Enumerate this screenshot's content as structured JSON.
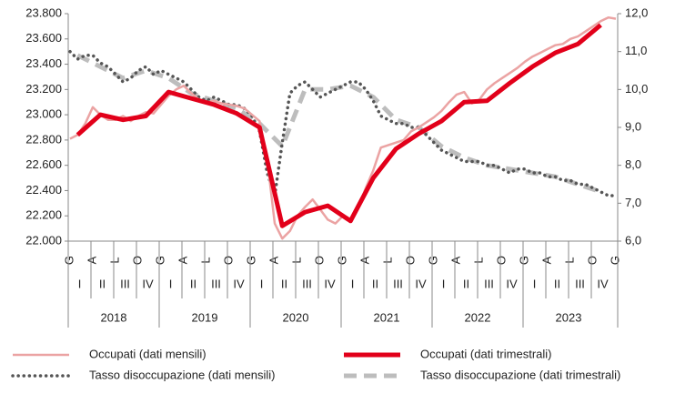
{
  "chart_data": {
    "type": "line",
    "categories": [
      "G",
      null,
      null,
      "A",
      null,
      null,
      "L",
      null,
      null,
      "O",
      null,
      null,
      "G",
      null,
      null,
      "A",
      null,
      null,
      "L",
      null,
      null,
      "O",
      null,
      null,
      "G",
      null,
      null,
      "A",
      null,
      null,
      "L",
      null,
      null,
      "O",
      null,
      null,
      "G",
      null,
      null,
      "A",
      null,
      null,
      "L",
      null,
      null,
      "O",
      null,
      null,
      "G",
      null,
      null,
      "A",
      null,
      null,
      "L",
      null,
      null,
      "O",
      null,
      null,
      "G",
      null,
      null,
      "A",
      null,
      null,
      "L",
      null,
      null,
      "O",
      null,
      null,
      "G"
    ],
    "quarters": [
      "I",
      "II",
      "III",
      "IV",
      "I",
      "II",
      "III",
      "IV",
      "I",
      "II",
      "III",
      "IV",
      "I",
      "II",
      "III",
      "IV",
      "I",
      "II",
      "III",
      "IV",
      "I",
      "II",
      "III",
      "IV"
    ],
    "years": [
      "2018",
      "2019",
      "2020",
      "2021",
      "2022",
      "2023"
    ],
    "ylim": [
      22000,
      23800
    ],
    "yticks": [
      {
        "value": 22000,
        "label": "22.000"
      },
      {
        "value": 22200,
        "label": "22.200"
      },
      {
        "value": 22400,
        "label": "22.400"
      },
      {
        "value": 22600,
        "label": "22.600"
      },
      {
        "value": 22800,
        "label": "22.800"
      },
      {
        "value": 23000,
        "label": "23.000"
      },
      {
        "value": 23200,
        "label": "23.200"
      },
      {
        "value": 23400,
        "label": "23.400"
      },
      {
        "value": 23600,
        "label": "23.600"
      },
      {
        "value": 23800,
        "label": "23.800"
      }
    ],
    "y2lim": [
      6,
      12
    ],
    "y2ticks": [
      {
        "value": 6,
        "label": "6,0"
      },
      {
        "value": 7,
        "label": "7,0"
      },
      {
        "value": 8,
        "label": "8,0"
      },
      {
        "value": 9,
        "label": "9,0"
      },
      {
        "value": 10,
        "label": "10,0"
      },
      {
        "value": 11,
        "label": "11,0"
      },
      {
        "value": 12,
        "label": "12,0"
      }
    ],
    "series": [
      {
        "name": "Occupati (dati mensili)",
        "color": "#eba3a3",
        "style": "solid",
        "width": 2.5,
        "values": [
          22810,
          22840,
          22930,
          23060,
          23000,
          22960,
          22960,
          22990,
          22950,
          22990,
          23020,
          23010,
          23080,
          23150,
          23200,
          23230,
          23170,
          23120,
          23100,
          23110,
          23090,
          23080,
          23070,
          23050,
          23000,
          22950,
          22650,
          22140,
          22020,
          22080,
          22200,
          22270,
          22330,
          22250,
          22170,
          22140,
          22200,
          22170,
          22260,
          22420,
          22560,
          22740,
          22760,
          22780,
          22800,
          22870,
          22900,
          22940,
          22980,
          23030,
          23100,
          23160,
          23180,
          23090,
          23120,
          23200,
          23250,
          23290,
          23330,
          23370,
          23420,
          23460,
          23490,
          23520,
          23550,
          23560,
          23600,
          23620,
          23660,
          23700,
          23740,
          23770,
          23760
        ]
      },
      {
        "name": "Occupati (dati trimestrali)",
        "color": "#e2001a",
        "style": "solid",
        "width": 5,
        "x": [
          1,
          4,
          7,
          10,
          13,
          16,
          19,
          22,
          25,
          28,
          31,
          34,
          37,
          40,
          43,
          46,
          49,
          52,
          55,
          58,
          61,
          64,
          67,
          70
        ],
        "values": [
          22840,
          23000,
          22960,
          22990,
          23180,
          23130,
          23080,
          23010,
          22900,
          22120,
          22230,
          22280,
          22160,
          22500,
          22730,
          22850,
          22950,
          23100,
          23110,
          23250,
          23380,
          23490,
          23560,
          23710
        ]
      },
      {
        "name": "Tasso disoccupazione (dati mensili)",
        "color": "#555555",
        "style": "dotted",
        "width": 3.5,
        "axis": "y2",
        "values": [
          11.0,
          10.8,
          10.9,
          10.9,
          10.7,
          10.6,
          10.4,
          10.2,
          10.3,
          10.5,
          10.6,
          10.4,
          10.5,
          10.4,
          10.3,
          10.2,
          10.0,
          9.8,
          9.7,
          9.8,
          9.7,
          9.6,
          9.6,
          9.5,
          9.3,
          8.9,
          7.8,
          7.2,
          8.6,
          9.9,
          10.1,
          10.2,
          10.0,
          9.8,
          9.9,
          10.0,
          10.1,
          10.2,
          10.2,
          10.0,
          9.7,
          9.3,
          9.2,
          9.1,
          9.1,
          9.0,
          9.0,
          8.8,
          8.6,
          8.4,
          8.3,
          8.2,
          8.1,
          8.1,
          8.1,
          8.0,
          8.0,
          7.9,
          7.8,
          7.9,
          7.9,
          7.8,
          7.8,
          7.7,
          7.7,
          7.6,
          7.6,
          7.5,
          7.5,
          7.4,
          7.3,
          7.2,
          7.2
        ]
      },
      {
        "name": "Tasso disoccupazione (dati trimestrali)",
        "color": "#bdbdbd",
        "style": "dashed",
        "width": 5,
        "axis": "y2",
        "x": [
          1,
          4,
          7,
          10,
          13,
          16,
          19,
          22,
          25,
          28,
          31,
          34,
          37,
          40,
          43,
          46,
          49,
          52,
          55,
          58,
          61,
          64,
          67,
          70
        ],
        "values": [
          10.9,
          10.6,
          10.3,
          10.5,
          10.3,
          9.9,
          9.7,
          9.5,
          9.1,
          8.5,
          10.0,
          10.0,
          10.1,
          9.8,
          9.2,
          9.0,
          8.5,
          8.2,
          8.0,
          7.9,
          7.8,
          7.7,
          7.5,
          7.3
        ]
      }
    ]
  }
}
